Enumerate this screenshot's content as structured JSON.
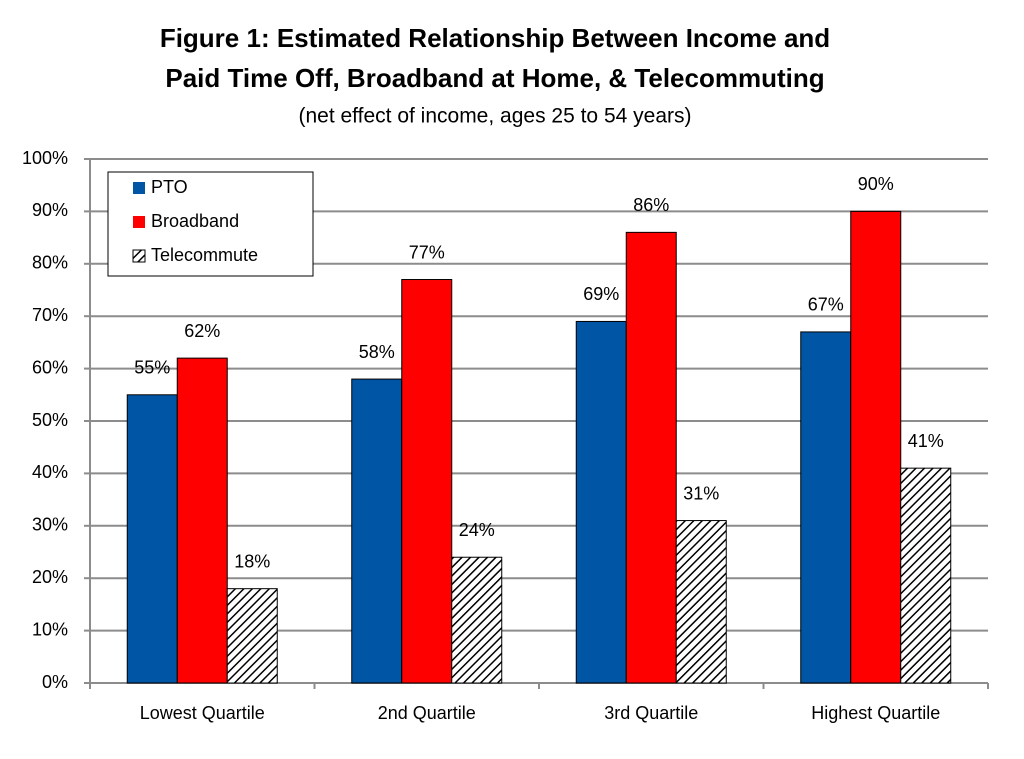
{
  "chart_data": {
    "type": "bar",
    "title": [
      "Figure 1: Estimated Relationship Between Income and",
      "Paid Time Off, Broadband at Home, & Telecommuting"
    ],
    "subtitle": "(net effect of income, ages 25 to 54 years)",
    "categories": [
      "Lowest Quartile",
      "2nd Quartile",
      "3rd Quartile",
      "Highest Quartile"
    ],
    "series": [
      {
        "name": "PTO",
        "color": "#0055a5",
        "values": [
          55,
          58,
          69,
          67
        ],
        "value_labels": [
          "55%",
          "58%",
          "69%",
          "67%"
        ]
      },
      {
        "name": "Broadband",
        "color": "#ff0000",
        "values": [
          62,
          77,
          86,
          90
        ],
        "value_labels": [
          "62%",
          "77%",
          "86%",
          "90%"
        ]
      },
      {
        "name": "Telecommute",
        "color": "#000000",
        "pattern": "hatch",
        "values": [
          18,
          24,
          31,
          41
        ],
        "value_labels": [
          "18%",
          "24%",
          "31%",
          "41%"
        ]
      }
    ],
    "ylim": [
      0,
      100
    ],
    "yticks": [
      {
        "value": 0,
        "label": "0%"
      },
      {
        "value": 10,
        "label": "10%"
      },
      {
        "value": 20,
        "label": "20%"
      },
      {
        "value": 30,
        "label": "30%"
      },
      {
        "value": 40,
        "label": "40%"
      },
      {
        "value": 50,
        "label": "50%"
      },
      {
        "value": 60,
        "label": "60%"
      },
      {
        "value": 70,
        "label": "70%"
      },
      {
        "value": 80,
        "label": "80%"
      },
      {
        "value": 90,
        "label": "90%"
      },
      {
        "value": 100,
        "label": "100%"
      }
    ],
    "grid": true,
    "legend": "upper left"
  }
}
